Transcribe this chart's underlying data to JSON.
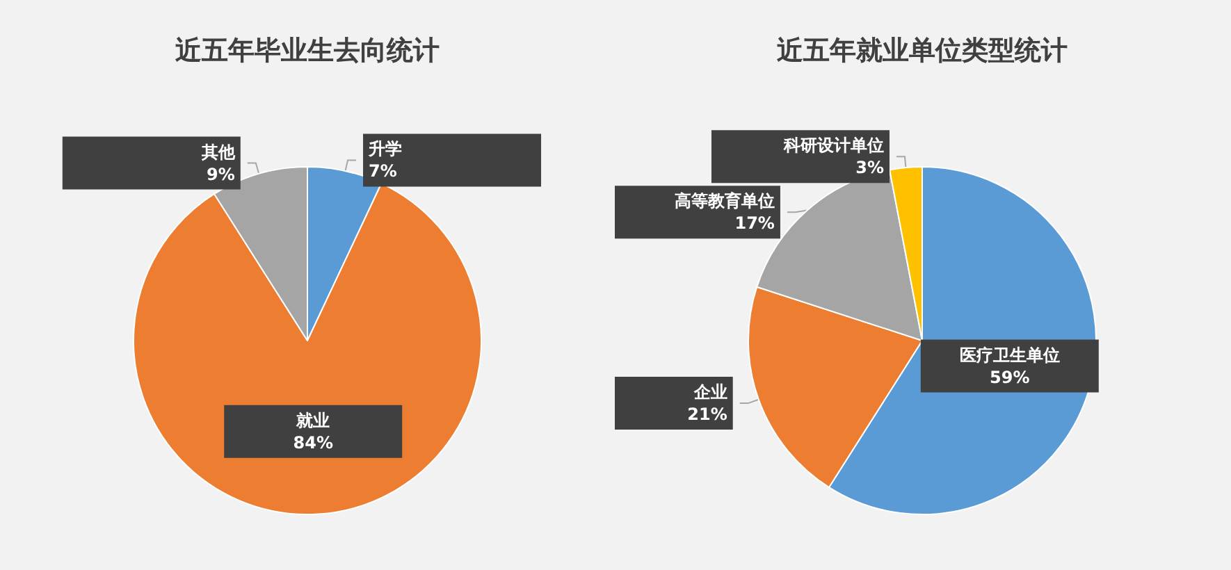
{
  "chart_data": [
    {
      "type": "pie",
      "title": "近五年毕业生去向统计",
      "categories": [
        "升学",
        "就业",
        "其他"
      ],
      "values": [
        7,
        84,
        9
      ],
      "colors": [
        "#5b9bd5",
        "#ed7d31",
        "#a5a5a5"
      ],
      "value_labels": [
        "7%",
        "84%",
        "9%"
      ]
    },
    {
      "type": "pie",
      "title": "近五年就业单位类型统计",
      "categories": [
        "医疗卫生单位",
        "企业",
        "高等教育单位",
        "科研设计单位"
      ],
      "values": [
        59,
        21,
        17,
        3
      ],
      "colors": [
        "#5b9bd5",
        "#ed7d31",
        "#a5a5a5",
        "#ffc000"
      ],
      "value_labels": [
        "59%",
        "21%",
        "17%",
        "3%"
      ]
    }
  ]
}
